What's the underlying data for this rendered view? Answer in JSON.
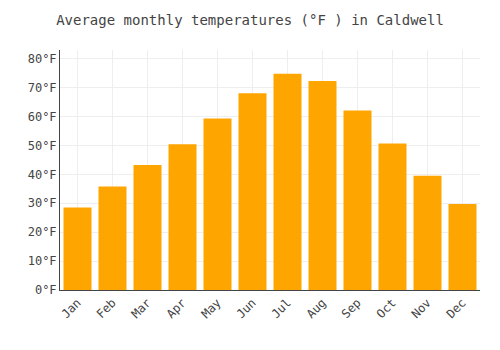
{
  "chart_data": {
    "type": "bar",
    "title": "Average monthly temperatures (°F ) in Caldwell",
    "categories": [
      "Jan",
      "Feb",
      "Mar",
      "Apr",
      "May",
      "Jun",
      "Jul",
      "Aug",
      "Sep",
      "Oct",
      "Nov",
      "Dec"
    ],
    "values": [
      28.5,
      35.8,
      43.2,
      50.4,
      59.3,
      68.0,
      74.8,
      72.3,
      62.1,
      50.7,
      39.5,
      29.7
    ],
    "color": "#FFA500",
    "ylim": [
      0,
      83
    ],
    "yticks": [
      {
        "value": 0,
        "label": "0°F"
      },
      {
        "value": 10,
        "label": "10°F"
      },
      {
        "value": 20,
        "label": "20°F"
      },
      {
        "value": 30,
        "label": "30°F"
      },
      {
        "value": 40,
        "label": "40°F"
      },
      {
        "value": 50,
        "label": "50°F"
      },
      {
        "value": 60,
        "label": "60°F"
      },
      {
        "value": 70,
        "label": "70°F"
      },
      {
        "value": 80,
        "label": "80°F"
      }
    ],
    "grid": true
  }
}
